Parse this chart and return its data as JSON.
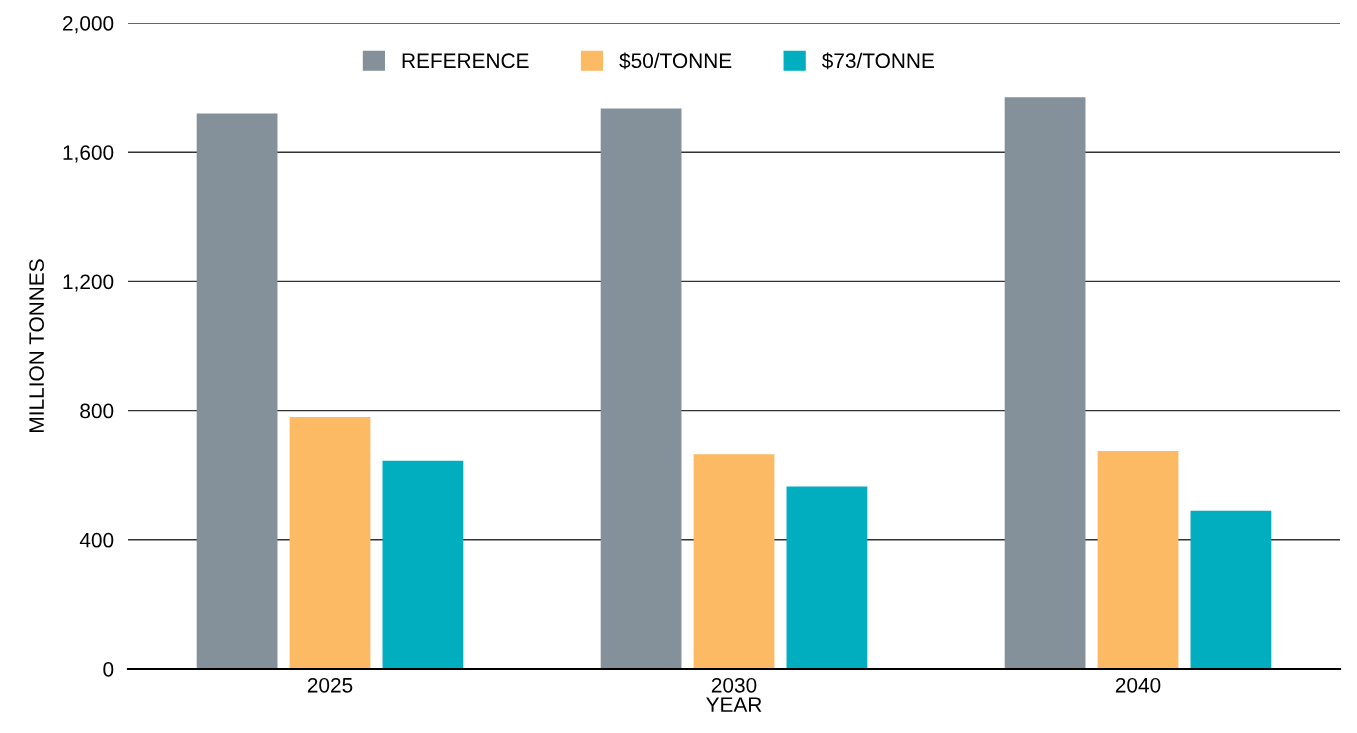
{
  "chart_data": {
    "type": "bar",
    "xlabel": "YEAR",
    "ylabel": "MILLION TONNES",
    "categories": [
      "2025",
      "2030",
      "2040"
    ],
    "series": [
      {
        "name": "REFERENCE",
        "color": "#85919a",
        "values": [
          1720,
          1735,
          1770
        ]
      },
      {
        "name": "$50/TONNE",
        "color": "#fbba63",
        "values": [
          780,
          665,
          675
        ]
      },
      {
        "name": "$73/TONNE",
        "color": "#00aec0",
        "values": [
          645,
          565,
          490
        ]
      }
    ],
    "ylim": [
      0,
      2000
    ],
    "yticks": [
      0,
      400,
      800,
      {
        "value": 1200,
        "label": "1,200"
      },
      {
        "value": 1600,
        "label": "1,600"
      },
      {
        "value": 2000,
        "label": "2,000"
      }
    ],
    "grid": "y",
    "legend": "top"
  }
}
